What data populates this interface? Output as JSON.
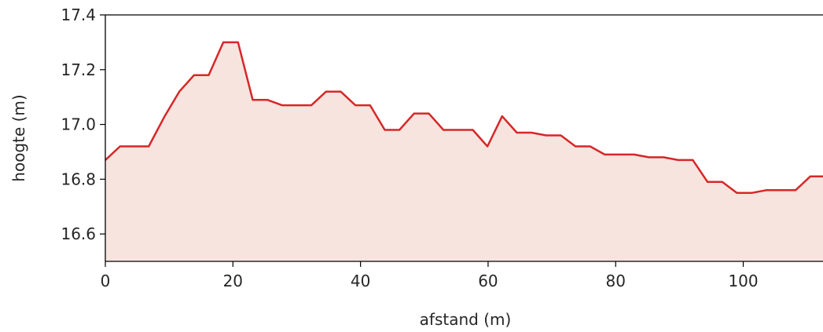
{
  "chart_data": {
    "type": "area",
    "xlabel": "afstand (m)",
    "ylabel": "hoogte (m)",
    "xlim": [
      0,
      112.5
    ],
    "ylim": [
      16.5,
      17.4
    ],
    "xticks": [
      0,
      20,
      40,
      60,
      80,
      100
    ],
    "yticks": [
      16.6,
      16.8,
      17.0,
      17.2,
      17.4
    ],
    "xtick_labels": [
      "0",
      "20",
      "40",
      "60",
      "80",
      "100"
    ],
    "ytick_labels": [
      "16.6",
      "16.8",
      "17.0",
      "17.2",
      "17.4"
    ],
    "grid": false,
    "colors": {
      "line": "#d62728",
      "fill": "#f7e4df"
    },
    "series": [
      {
        "x": [
          0,
          2.3,
          4.5,
          6.8,
          9.3,
          11.6,
          13.9,
          16.2,
          18.5,
          20.8,
          23.1,
          25.4,
          27.7,
          30.0,
          32.3,
          34.6,
          36.9,
          39.2,
          41.5,
          43.8,
          46.1,
          48.4,
          50.7,
          53.0,
          55.3,
          57.6,
          59.9,
          62.2,
          64.5,
          66.8,
          69.1,
          71.4,
          73.7,
          76.0,
          78.3,
          80.6,
          82.9,
          85.2,
          87.5,
          89.8,
          92.1,
          94.4,
          96.7,
          99.0,
          101.3,
          103.6,
          105.9,
          108.2,
          110.5,
          112.5
        ],
        "y": [
          16.87,
          16.92,
          16.92,
          16.92,
          17.03,
          17.12,
          17.18,
          17.18,
          17.3,
          17.3,
          17.09,
          17.09,
          17.07,
          17.07,
          17.07,
          17.12,
          17.12,
          17.07,
          17.07,
          16.98,
          16.98,
          17.04,
          17.04,
          16.98,
          16.98,
          16.98,
          16.92,
          17.03,
          16.97,
          16.97,
          16.96,
          16.96,
          16.92,
          16.92,
          16.89,
          16.89,
          16.89,
          16.88,
          16.88,
          16.87,
          16.87,
          16.79,
          16.79,
          16.75,
          16.75,
          16.76,
          16.76,
          16.76,
          16.81,
          16.81
        ]
      }
    ]
  }
}
